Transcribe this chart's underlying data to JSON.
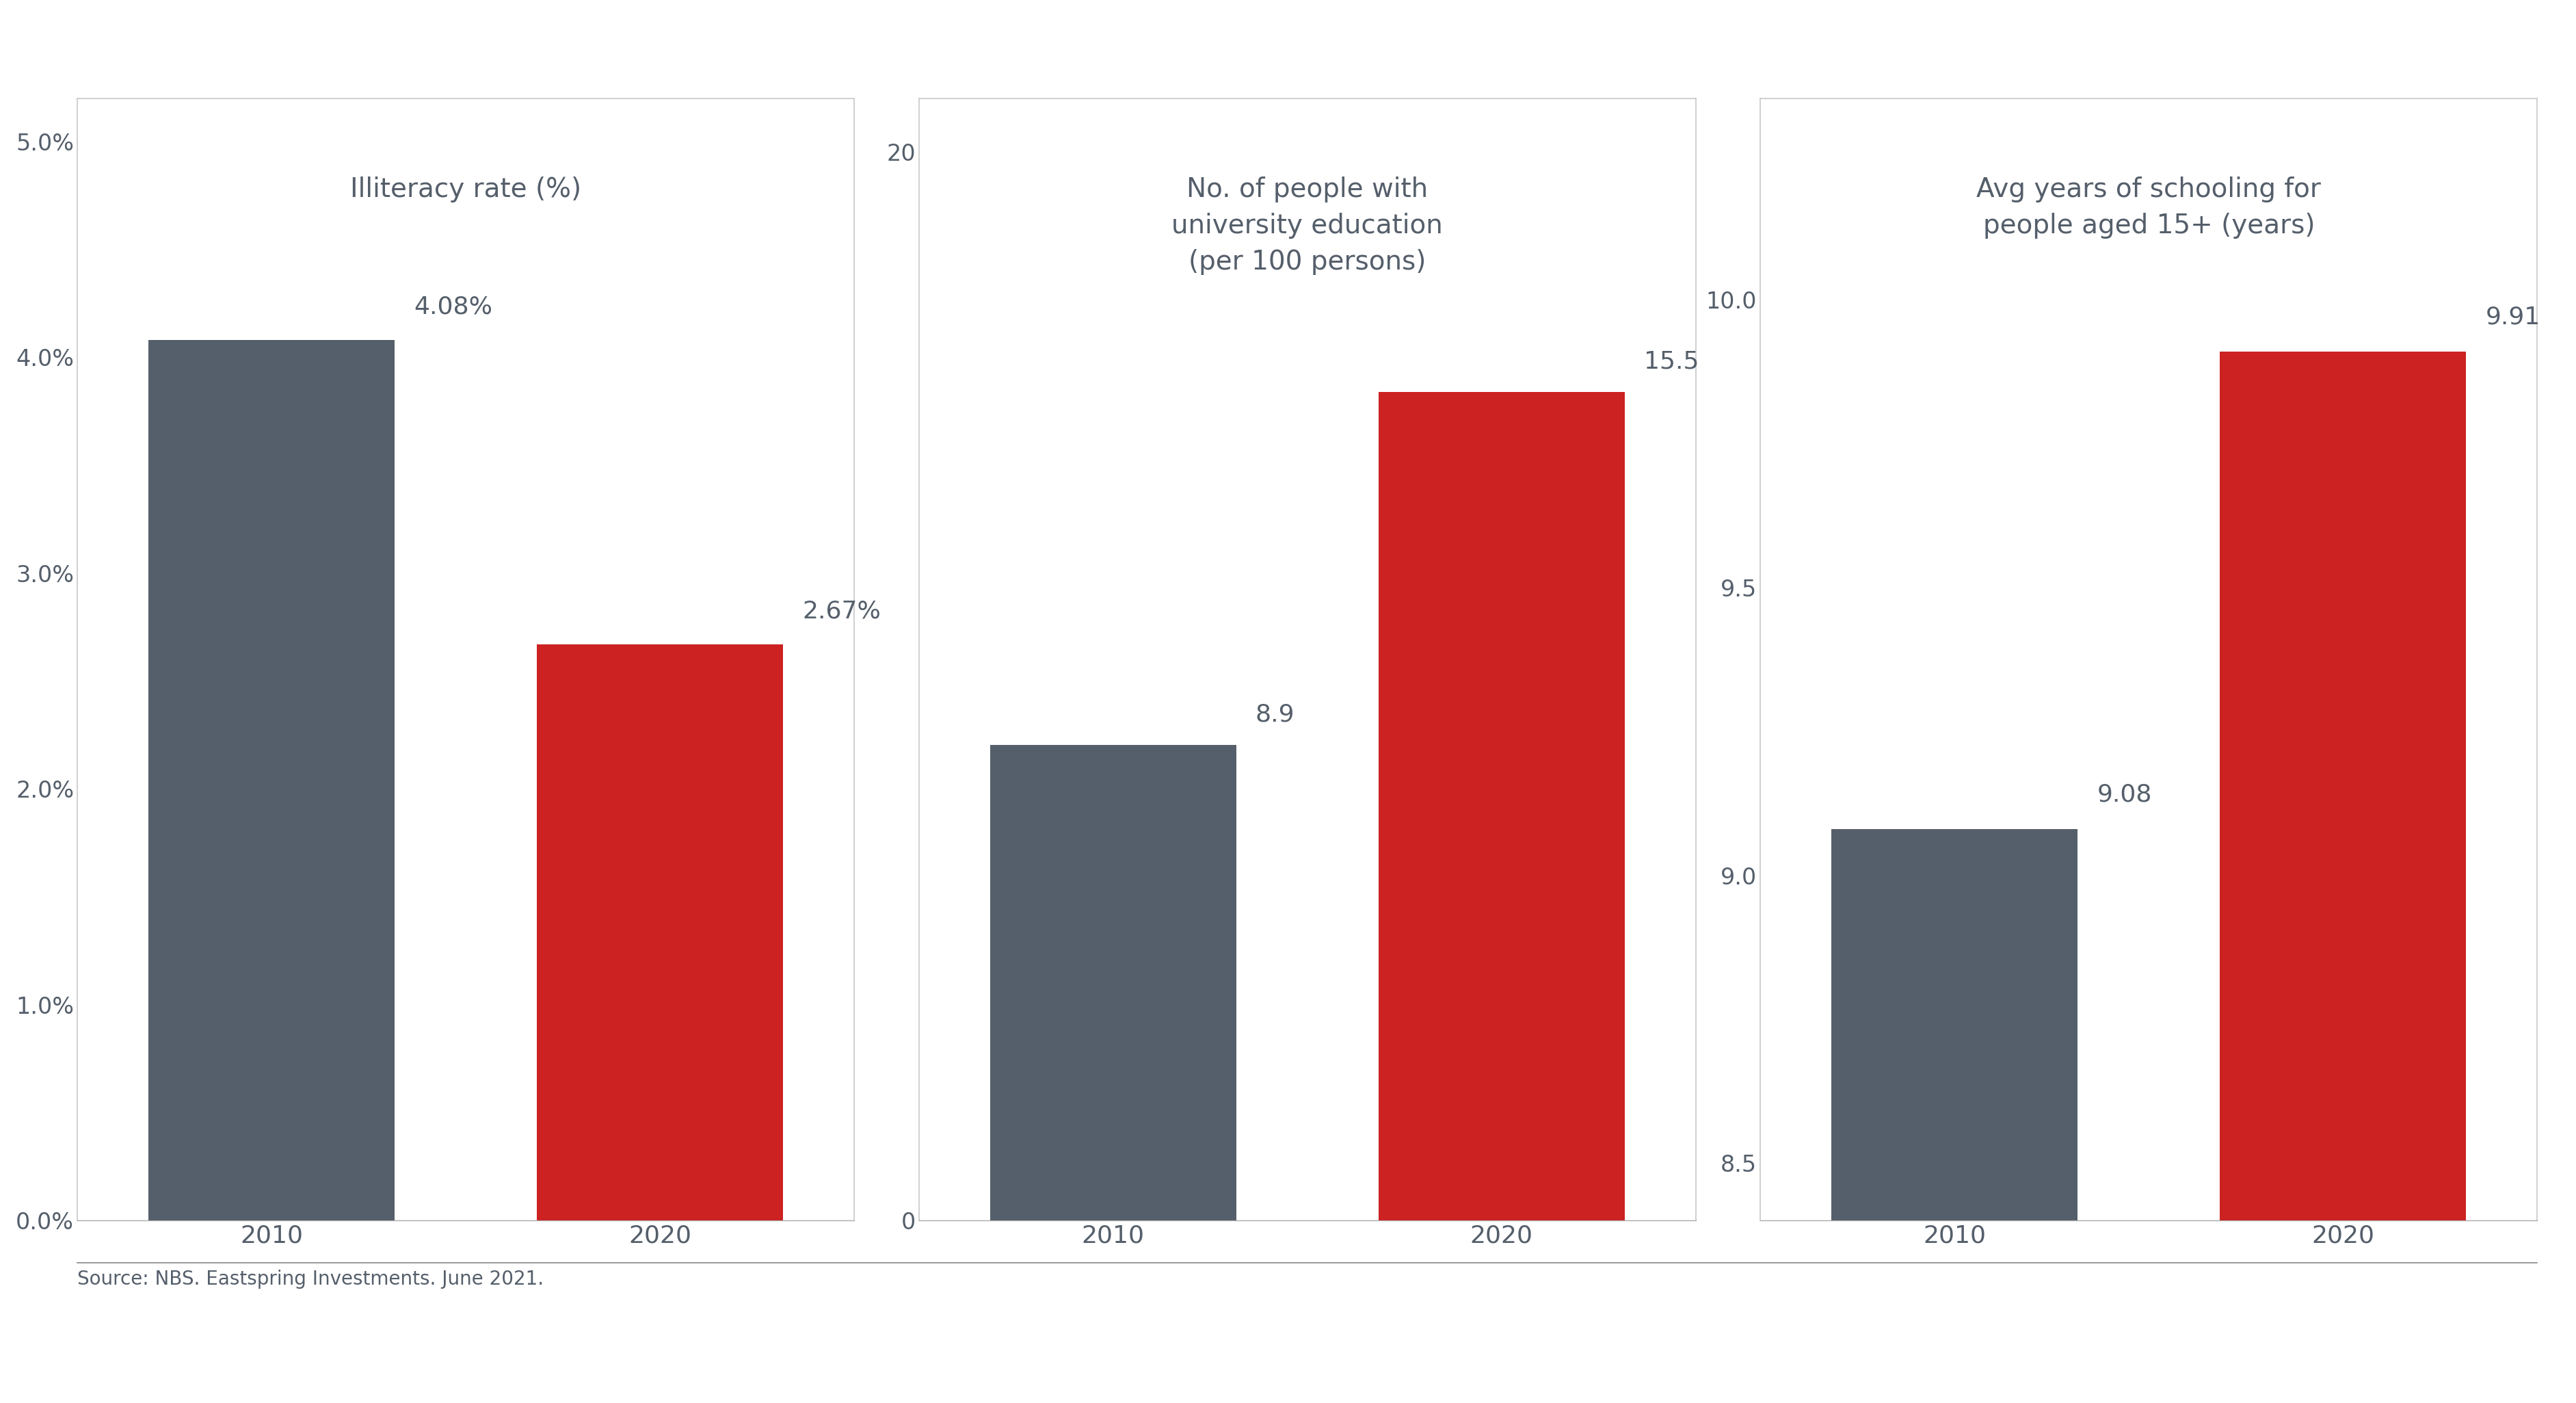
{
  "source": "Source: NBS. Eastspring Investments. June 2021.",
  "panels": [
    {
      "title": "Illiteracy rate (%)",
      "categories": [
        "2010",
        "2020"
      ],
      "values": [
        0.0408,
        0.0267
      ],
      "labels": [
        "4.08%",
        "2.67%"
      ],
      "colors": [
        "#555f6b",
        "#cc2222"
      ],
      "ylim": [
        0.0,
        0.052
      ],
      "yticks": [
        0.0,
        0.01,
        0.02,
        0.03,
        0.04,
        0.05
      ],
      "yticklabels": [
        "0.0%",
        "1.0%",
        "2.0%",
        "3.0%",
        "4.0%",
        "5.0%"
      ],
      "label_offsets": [
        0.001,
        0.001
      ]
    },
    {
      "title": "No. of people with\nuniversity education\n(per 100 persons)",
      "categories": [
        "2010",
        "2020"
      ],
      "values": [
        8.9,
        15.5
      ],
      "labels": [
        "8.9",
        "15.5"
      ],
      "colors": [
        "#555f6b",
        "#cc2222"
      ],
      "ylim": [
        0,
        21
      ],
      "yticks": [
        0,
        20
      ],
      "yticklabels": [
        "0",
        "20"
      ],
      "label_offsets": [
        0.35,
        0.35
      ]
    },
    {
      "title": "Avg years of schooling for\npeople aged 15+ (years)",
      "categories": [
        "2010",
        "2020"
      ],
      "values": [
        9.08,
        9.91
      ],
      "labels": [
        "9.08",
        "9.91"
      ],
      "colors": [
        "#555f6b",
        "#cc2222"
      ],
      "ylim": [
        8.4,
        10.35
      ],
      "yticks": [
        8.5,
        9.0,
        9.5,
        10.0
      ],
      "yticklabels": [
        "8.5",
        "9.0",
        "9.5",
        "10.0"
      ],
      "label_offsets": [
        0.04,
        0.04
      ]
    }
  ],
  "bar_width": 0.38,
  "background_color": "#ffffff",
  "border_color": "#c8c8c8",
  "text_color": "#555f6b",
  "title_fontsize": 28,
  "label_fontsize": 26,
  "tick_fontsize": 24,
  "source_fontsize": 20,
  "x_tick_fontsize": 26
}
